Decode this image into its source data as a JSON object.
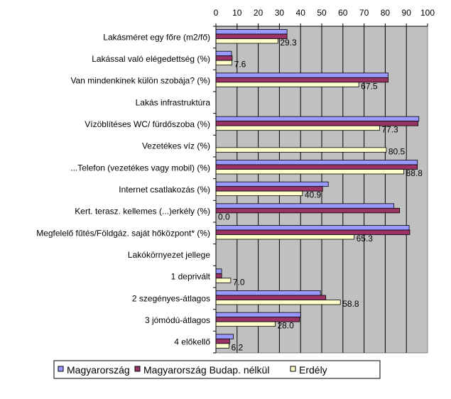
{
  "chart_data": {
    "type": "bar",
    "orientation": "horizontal",
    "title": "",
    "xlabel": "",
    "ylabel": "",
    "xlim": [
      0,
      100
    ],
    "x_ticks": [
      0,
      10,
      20,
      30,
      40,
      50,
      60,
      70,
      80,
      90,
      100
    ],
    "grid": true,
    "legend_position": "bottom",
    "categories": [
      "Lakásméret egy főre (m2/fő)",
      "Lakással való elégedettség  (%)",
      "Van mindenkinek külön szobája? (%)",
      "Lakás infrastruktúra",
      "Vízöblítéses WC/ fürdőszoba  (%)",
      "Vezetékes víz  (%)",
      "...Telefon (vezetékes vagy mobil) (%)",
      "Internet csatlakozás  (%)",
      "Kert. terasz. kellemes (...)erkély (%)",
      "Megfelelő fűtés/Földgáz. saját hőközpont* (%)",
      "Lakókörnyezet jellege",
      "1 deprivált",
      "2 szegényes-átlagos",
      "3 jómódú-átlagos",
      "4 előkellő"
    ],
    "series": [
      {
        "name": "Magyarország",
        "color": "#9999FF",
        "values": [
          33.6,
          7.4,
          81.4,
          null,
          95.9,
          null,
          95.2,
          53.1,
          84.1,
          91.3,
          null,
          2.7,
          49.4,
          40.0,
          8.2
        ]
      },
      {
        "name": "Magyarország Budap. nélkül",
        "color": "#993366",
        "values": [
          33.6,
          7.7,
          81.4,
          null,
          95.5,
          null,
          95.2,
          50.4,
          86.8,
          91.6,
          null,
          2.7,
          51.9,
          39.5,
          6.5
        ]
      },
      {
        "name": "Erdély",
        "color": "#FFFFCC",
        "values": [
          29.3,
          7.6,
          67.5,
          null,
          77.3,
          80.5,
          88.8,
          40.9,
          0.0,
          65.3,
          null,
          7.0,
          58.8,
          28.0,
          6.2
        ],
        "data_labels": [
          "29.3",
          "7.6",
          "67.5",
          null,
          "77.3",
          "80.5",
          "88.8",
          "40.9",
          "0.0",
          "65.3",
          null,
          "7.0",
          "58.8",
          "28.0",
          "6.2"
        ]
      }
    ],
    "plot_background": "#C0C0C0"
  }
}
